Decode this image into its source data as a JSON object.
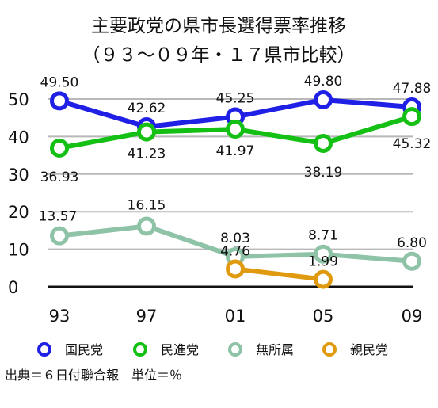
{
  "chart_data": {
    "type": "line",
    "title": [
      "主要政党の県市長選得票率推移",
      "（９３〜０９年・１７県市比較）"
    ],
    "categories": [
      "93",
      "97",
      "01",
      "05",
      "09"
    ],
    "ylim": [
      0,
      50
    ],
    "yticks": [
      0,
      10,
      20,
      30,
      40,
      50
    ],
    "grid": true,
    "legend_position": "bottom",
    "series": [
      {
        "name": "国民党",
        "color": "#1f1fe6",
        "values": [
          49.5,
          42.62,
          45.25,
          49.8,
          47.88
        ],
        "labels": [
          "49.50",
          "42.62",
          "45.25",
          "49.80",
          "47.88"
        ]
      },
      {
        "name": "民進党",
        "color": "#14c014",
        "values": [
          36.93,
          41.23,
          41.97,
          38.19,
          45.32
        ],
        "labels": [
          "36.93",
          "41.23",
          "41.97",
          "38.19",
          "45.32"
        ]
      },
      {
        "name": "無所属",
        "color": "#8fc3a8",
        "values": [
          13.57,
          16.15,
          8.03,
          8.71,
          6.8
        ],
        "labels": [
          "13.57",
          "16.15",
          "8.03",
          "8.71",
          "6.80"
        ]
      },
      {
        "name": "親民党",
        "color": "#e09a10",
        "values": [
          null,
          null,
          4.76,
          1.99,
          null
        ],
        "labels": [
          null,
          null,
          "4.76",
          "1.99",
          null
        ]
      }
    ]
  },
  "source_note": "出典＝６日付聯合報　単位＝％"
}
